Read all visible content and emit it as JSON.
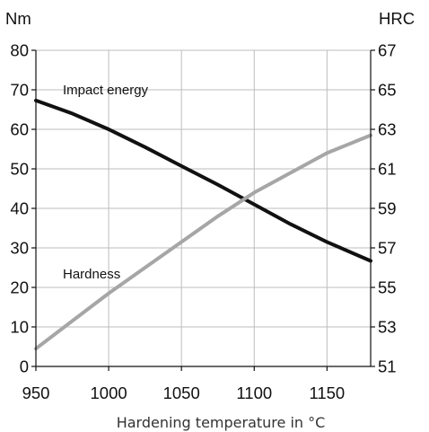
{
  "chart_data": {
    "type": "line",
    "xlabel": "Hardening temperature in °C",
    "ylabel_left": "Nm",
    "ylabel_right": "HRC",
    "xlim": [
      950,
      1180
    ],
    "ylim_left": [
      0,
      80
    ],
    "ylim_right": [
      51,
      67
    ],
    "x_ticks": [
      950,
      1000,
      1050,
      1100,
      1150
    ],
    "y_ticks_left": [
      0,
      10,
      20,
      30,
      40,
      50,
      60,
      70,
      80
    ],
    "y_ticks_right": [
      51,
      53,
      55,
      57,
      59,
      61,
      63,
      65,
      67
    ],
    "grid": true,
    "series": [
      {
        "name": "Impact energy",
        "axis": "left",
        "color": "#111111",
        "x": [
          950,
          975,
          1000,
          1025,
          1050,
          1075,
          1100,
          1125,
          1150,
          1180
        ],
        "y": [
          67.3,
          64.0,
          60.0,
          55.5,
          50.7,
          46.0,
          41.0,
          36.0,
          31.5,
          26.7
        ]
      },
      {
        "name": "Hardness",
        "axis": "right",
        "color": "#a6a6a6",
        "x": [
          950,
          975,
          1000,
          1025,
          1050,
          1075,
          1100,
          1125,
          1150,
          1180
        ],
        "y": [
          51.9,
          53.3,
          54.7,
          56.0,
          57.3,
          58.6,
          59.8,
          60.8,
          61.8,
          62.7
        ]
      }
    ]
  }
}
